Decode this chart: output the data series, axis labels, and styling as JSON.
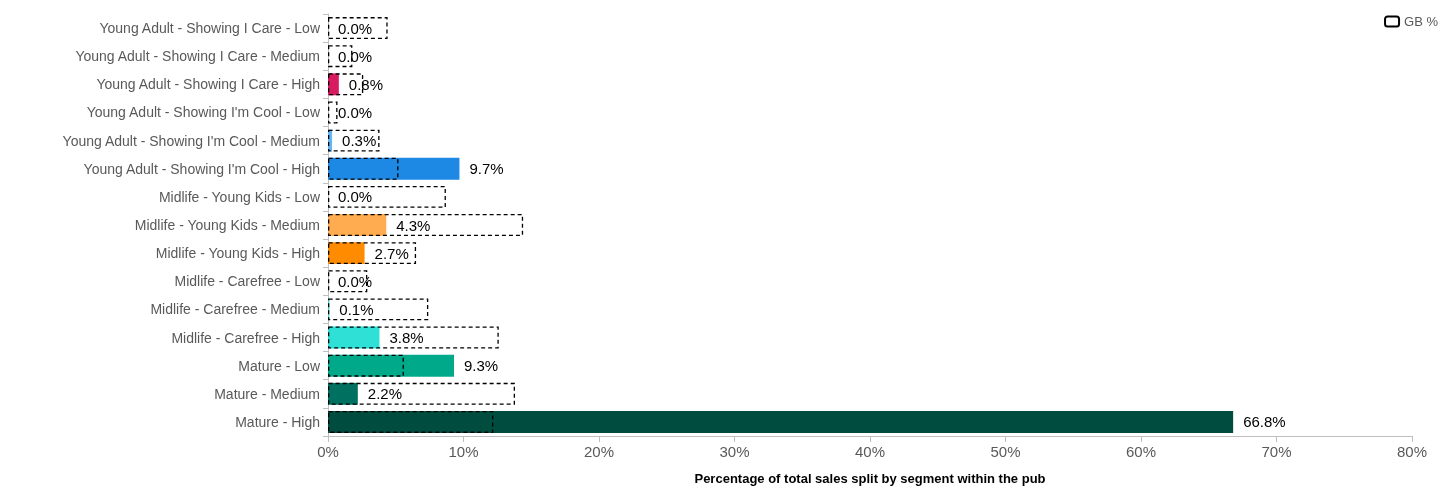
{
  "chart_data": {
    "type": "bar",
    "orientation": "horizontal",
    "xlabel": "Percentage of total sales split by segment within the pub",
    "categories": [
      "Young Adult - Showing I Care - Low",
      "Young Adult - Showing I Care - Medium",
      "Young Adult - Showing I Care - High",
      "Young Adult - Showing I'm Cool - Low",
      "Young Adult - Showing I'm Cool - Medium",
      "Young Adult - Showing I'm Cool - High",
      "Midlife - Young Kids - Low",
      "Midlife - Young Kids - Medium",
      "Midlife - Young Kids - High",
      "Midlife - Carefree - Low",
      "Midlife - Carefree - Medium",
      "Midlife - Carefree - High",
      "Mature - Low",
      "Mature - Medium",
      "Mature - High"
    ],
    "series": [
      {
        "colors": [
          "#d81b60",
          "#e91e63",
          "#d81b60",
          "#90caf9",
          "#64b5f6",
          "#1e88e5",
          "#ffcc80",
          "#ffab50",
          "#ff8c00",
          "#80deea",
          "#4dd0e1",
          "#2ee0d6",
          "#00a98a",
          "#007060",
          "#004d40"
        ],
        "values": [
          0.0,
          0.0,
          0.8,
          0.0,
          0.3,
          9.7,
          0.0,
          4.3,
          2.7,
          0.0,
          0.1,
          3.8,
          9.3,
          2.2,
          66.8
        ],
        "value_labels": [
          "0.0%",
          "0.0%",
          "0.8%",
          "0.0%",
          "0.3%",
          "9.7%",
          "0.0%",
          "4.3%",
          "2.7%",
          "0.0%",
          "0.1%",
          "3.8%",
          "9.3%",
          "2.2%",
          "66.8%"
        ]
      },
      {
        "name": "GB %",
        "color": "#000000",
        "line_style": "dashed",
        "values": [
          4.4,
          1.8,
          2.6,
          0.7,
          3.8,
          5.2,
          8.7,
          14.4,
          6.5,
          2.9,
          7.4,
          12.6,
          5.6,
          13.8,
          12.2
        ]
      }
    ],
    "xlim": [
      0,
      80
    ],
    "xticks": [
      {
        "value": 0,
        "label": "0%"
      },
      {
        "value": 10,
        "label": "10%"
      },
      {
        "value": 20,
        "label": "20%"
      },
      {
        "value": 30,
        "label": "30%"
      },
      {
        "value": 40,
        "label": "40%"
      },
      {
        "value": 50,
        "label": "50%"
      },
      {
        "value": 60,
        "label": "60%"
      },
      {
        "value": 70,
        "label": "70%"
      },
      {
        "value": 80,
        "label": "80%"
      }
    ],
    "grid": false,
    "legend": "top right"
  }
}
